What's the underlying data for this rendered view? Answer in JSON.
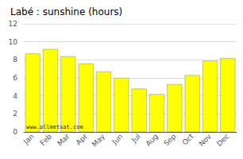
{
  "chart_data": {
    "type": "bar",
    "title": "Labé : sunshine (hours)",
    "categories": [
      "Jan",
      "Feb",
      "Mar",
      "Apr",
      "May",
      "Jun",
      "Jul",
      "Aug",
      "Sep",
      "Oct",
      "Nov",
      "Dec"
    ],
    "values": [
      8.7,
      9.2,
      8.4,
      7.6,
      6.7,
      6.0,
      4.8,
      4.2,
      5.3,
      6.3,
      7.9,
      8.2
    ],
    "color": "#ffff00",
    "ylim": [
      0,
      12
    ],
    "yticks": [
      0,
      2,
      4,
      6,
      8,
      10,
      12
    ],
    "grid": true,
    "annotation": "www.allmetsat.com"
  }
}
